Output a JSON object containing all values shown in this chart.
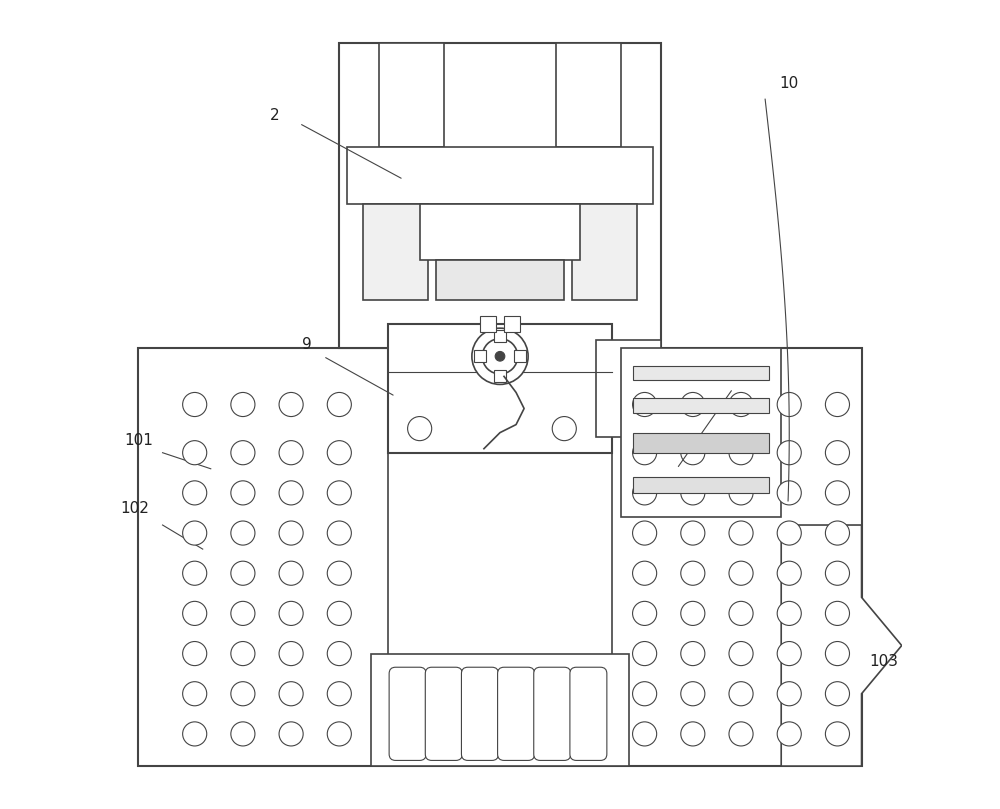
{
  "bg_color": "#ffffff",
  "line_color": "#444444",
  "label_color": "#222222",
  "fig_width": 10.0,
  "fig_height": 8.09,
  "dpi": 100
}
